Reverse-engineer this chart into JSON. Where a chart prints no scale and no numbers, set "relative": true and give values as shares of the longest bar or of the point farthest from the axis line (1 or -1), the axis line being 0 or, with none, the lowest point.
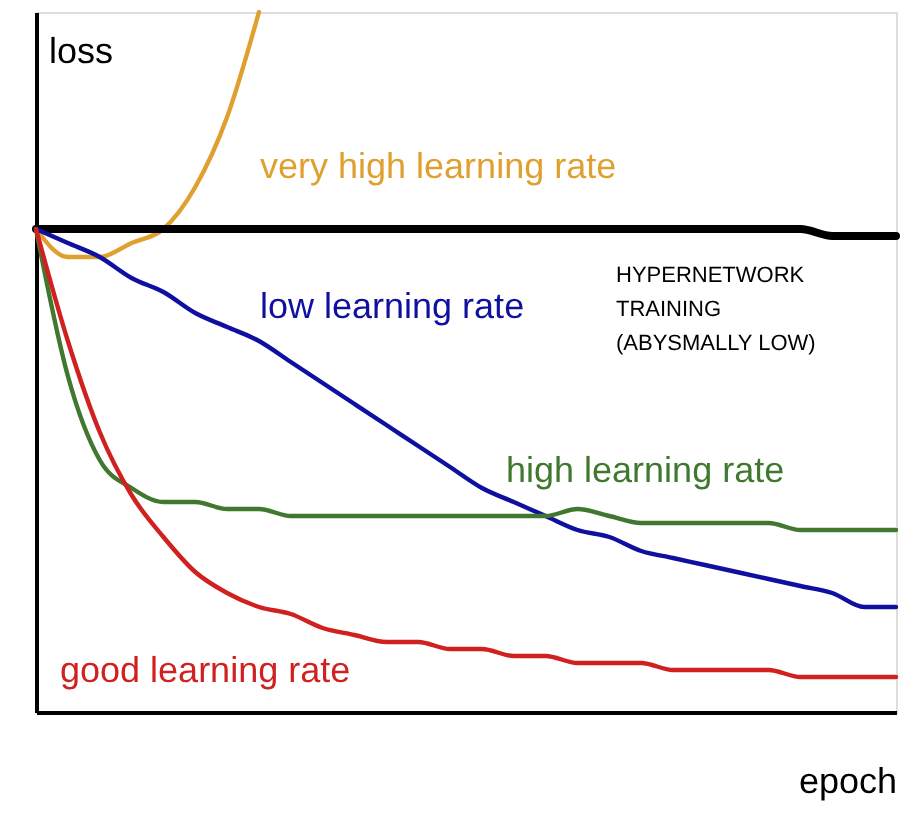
{
  "chart_data": {
    "type": "line",
    "relative": true,
    "xlabel": "epoch",
    "ylabel": "loss",
    "grid": false,
    "categories": [
      null,
      null,
      null,
      null,
      null,
      null,
      null,
      null,
      null,
      null,
      null,
      null,
      null,
      null,
      null,
      null,
      null,
      null,
      null,
      null,
      null,
      null,
      null,
      null,
      null,
      null,
      null,
      null
    ],
    "series": [
      {
        "name": "very high learning rate",
        "color": "#e0a030",
        "values": [
          0.69,
          0.65,
          0.65,
          0.67,
          0.69,
          0.75,
          0.85,
          1.0,
          null,
          null,
          null,
          null,
          null,
          null,
          null,
          null,
          null,
          null,
          null,
          null,
          null,
          null,
          null,
          null,
          null,
          null,
          null,
          null
        ]
      },
      {
        "name": "HYPERNETWORK TRAINING (ABYSMALLY LOW)",
        "color": "#000000",
        "values": [
          0.69,
          0.69,
          0.69,
          0.69,
          0.69,
          0.69,
          0.69,
          0.69,
          0.69,
          0.69,
          0.69,
          0.69,
          0.69,
          0.69,
          0.69,
          0.69,
          0.69,
          0.69,
          0.69,
          0.69,
          0.69,
          0.69,
          0.69,
          0.69,
          0.69,
          0.68,
          0.68,
          0.68
        ]
      },
      {
        "name": "low learning rate",
        "color": "#1010a0",
        "values": [
          0.69,
          0.67,
          0.65,
          0.62,
          0.6,
          0.57,
          0.55,
          0.53,
          0.5,
          0.47,
          0.44,
          0.41,
          0.38,
          0.35,
          0.32,
          0.3,
          0.28,
          0.26,
          0.25,
          0.23,
          0.22,
          0.21,
          0.2,
          0.19,
          0.18,
          0.17,
          0.15,
          0.15
        ]
      },
      {
        "name": "high learning rate",
        "color": "#407830",
        "values": [
          0.69,
          0.48,
          0.36,
          0.32,
          0.3,
          0.3,
          0.29,
          0.29,
          0.28,
          0.28,
          0.28,
          0.28,
          0.28,
          0.28,
          0.28,
          0.28,
          0.28,
          0.29,
          0.28,
          0.27,
          0.27,
          0.27,
          0.27,
          0.27,
          0.26,
          0.26,
          0.26,
          0.26
        ]
      },
      {
        "name": "good learning rate",
        "color": "#d02020",
        "values": [
          0.69,
          0.53,
          0.4,
          0.31,
          0.25,
          0.2,
          0.17,
          0.15,
          0.14,
          0.12,
          0.11,
          0.1,
          0.1,
          0.09,
          0.09,
          0.08,
          0.08,
          0.07,
          0.07,
          0.07,
          0.06,
          0.06,
          0.06,
          0.06,
          0.05,
          0.05,
          0.05,
          0.05
        ]
      }
    ]
  }
}
